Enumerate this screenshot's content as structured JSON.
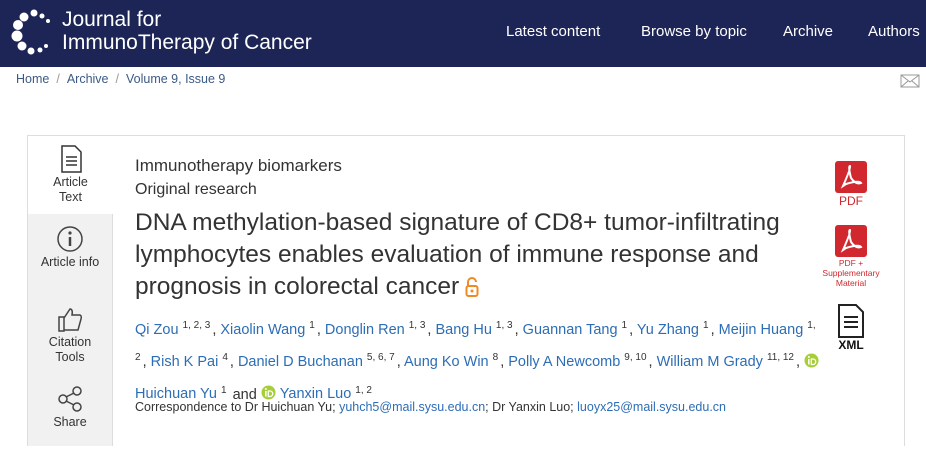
{
  "header": {
    "logo_line1": "Journal for",
    "logo_line2": "ImmunoTherapy of Cancer",
    "nav": [
      "Latest content",
      "Browse by topic",
      "Archive",
      "Authors"
    ]
  },
  "breadcrumb": [
    "Home",
    "Archive",
    "Volume 9, Issue 9"
  ],
  "sidebar": [
    "Article Text",
    "Article info",
    "Citation Tools",
    "Share"
  ],
  "article": {
    "section": "Immunotherapy biomarkers",
    "type": "Original research",
    "title": "DNA methylation-based signature of CD8+ tumor-infiltrating lymphocytes enables evaluation of immune response and prognosis in colorectal cancer",
    "open_access": true,
    "author_separator": ",",
    "author_conjunction": "and",
    "authors": [
      {
        "name": "Qi Zou",
        "sup": "1, 2, 3"
      },
      {
        "name": "Xiaolin Wang",
        "sup": "1"
      },
      {
        "name": "Donglin Ren",
        "sup": "1, 3"
      },
      {
        "name": "Bang Hu",
        "sup": "1, 3"
      },
      {
        "name": "Guannan Tang",
        "sup": "1"
      },
      {
        "name": "Yu Zhang",
        "sup": "1"
      },
      {
        "name": "Meijin Huang",
        "sup": "1, 2"
      },
      {
        "name": "Rish K Pai",
        "sup": "4"
      },
      {
        "name": "Daniel D Buchanan",
        "sup": "5, 6, 7"
      },
      {
        "name": "Aung Ko Win",
        "sup": "8"
      },
      {
        "name": "Polly A Newcomb",
        "sup": "9, 10"
      },
      {
        "name": "William M Grady",
        "sup": "11, 12"
      },
      {
        "name": "Huichuan Yu",
        "sup": "1",
        "orcid": true
      },
      {
        "name": "Yanxin Luo",
        "sup": "1, 2",
        "orcid": true
      }
    ],
    "correspondence": {
      "prefix": "Correspondence to Dr Huichuan Yu;",
      "email1": "yuhch5@mail.sysu.edu.cn",
      "middle": "; Dr Yanxin Luo;",
      "email2": "luoyx25@mail.sysu.edu.cn"
    }
  },
  "downloads": [
    "PDF",
    "PDF + Supplementary Material",
    "XML"
  ]
}
